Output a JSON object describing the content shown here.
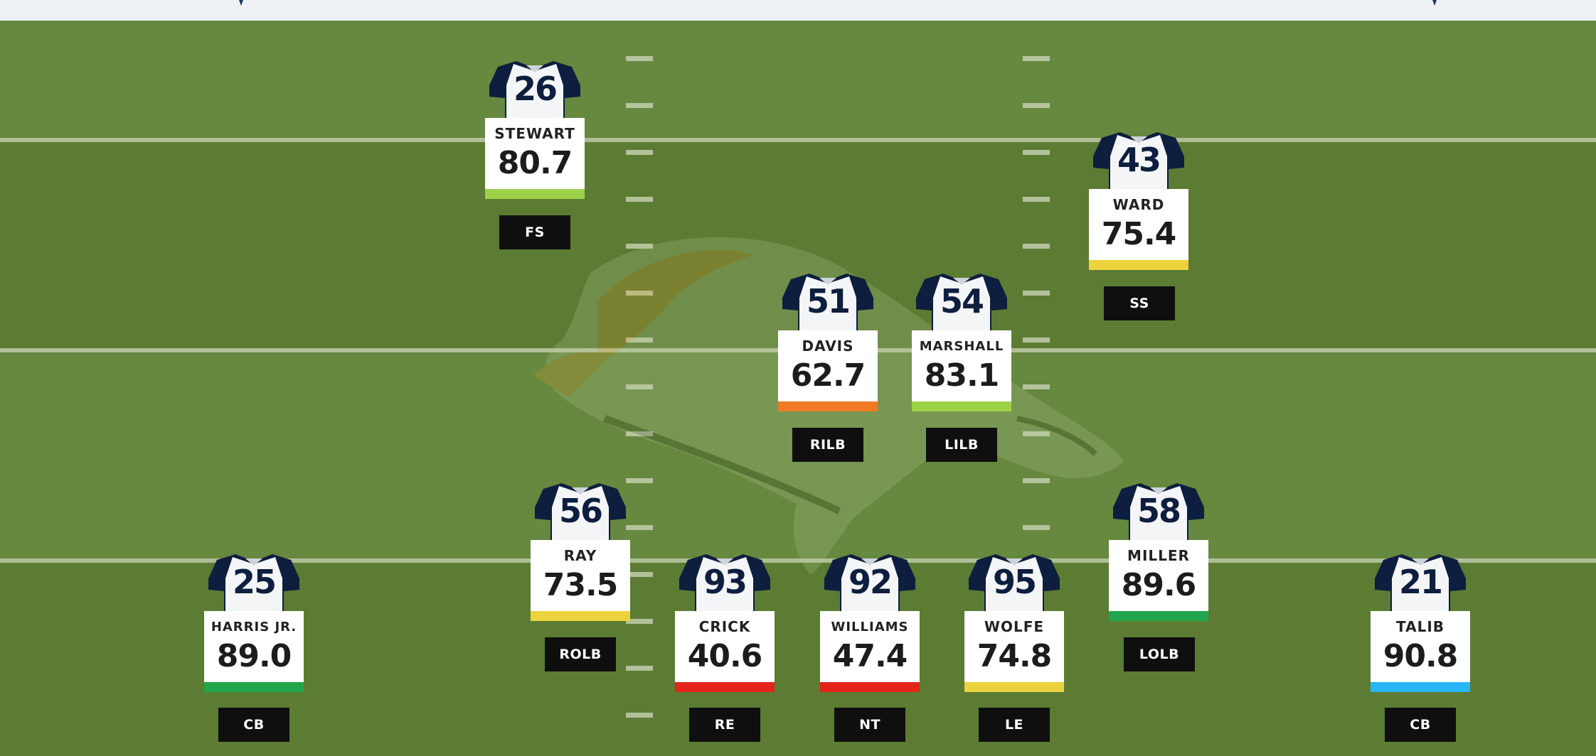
{
  "field": {
    "logo_name": "broncos-logo-watermark",
    "colors": {
      "grass_light": "#66883f",
      "grass_dark": "#5c7c33",
      "lines": "#c9d3b5",
      "jersey_navy": "#0d1e3f"
    }
  },
  "grade_colors": {
    "elite": "#29b6f6",
    "high": "#21a64b",
    "good": "#9ed14a",
    "average": "#ecd33d",
    "below": "#f07a23",
    "poor": "#e3241b"
  },
  "players": [
    {
      "id": "fs",
      "number": "26",
      "name": "STEWART",
      "grade": "80.7",
      "position": "FS",
      "bar_color": "#9ed14a"
    },
    {
      "id": "ss",
      "number": "43",
      "name": "WARD",
      "grade": "75.4",
      "position": "SS",
      "bar_color": "#ecd33d"
    },
    {
      "id": "rilb",
      "number": "51",
      "name": "DAVIS",
      "grade": "62.7",
      "position": "RILB",
      "bar_color": "#f07a23"
    },
    {
      "id": "lilb",
      "number": "54",
      "name": "MARSHALL",
      "grade": "83.1",
      "position": "LILB",
      "bar_color": "#9ed14a"
    },
    {
      "id": "rolb",
      "number": "56",
      "name": "RAY",
      "grade": "73.5",
      "position": "ROLB",
      "bar_color": "#ecd33d"
    },
    {
      "id": "lolb",
      "number": "58",
      "name": "MILLER",
      "grade": "89.6",
      "position": "LOLB",
      "bar_color": "#21a64b"
    },
    {
      "id": "cb-right",
      "number": "25",
      "name": "HARRIS JR.",
      "grade": "89.0",
      "position": "CB",
      "bar_color": "#21a64b"
    },
    {
      "id": "re",
      "number": "93",
      "name": "CRICK",
      "grade": "40.6",
      "position": "RE",
      "bar_color": "#e3241b"
    },
    {
      "id": "nt",
      "number": "92",
      "name": "WILLIAMS",
      "grade": "47.4",
      "position": "NT",
      "bar_color": "#e3241b"
    },
    {
      "id": "le",
      "number": "95",
      "name": "WOLFE",
      "grade": "74.8",
      "position": "LE",
      "bar_color": "#ecd33d"
    },
    {
      "id": "cb-left",
      "number": "21",
      "name": "TALIB",
      "grade": "90.8",
      "position": "CB",
      "bar_color": "#29b6f6"
    }
  ]
}
